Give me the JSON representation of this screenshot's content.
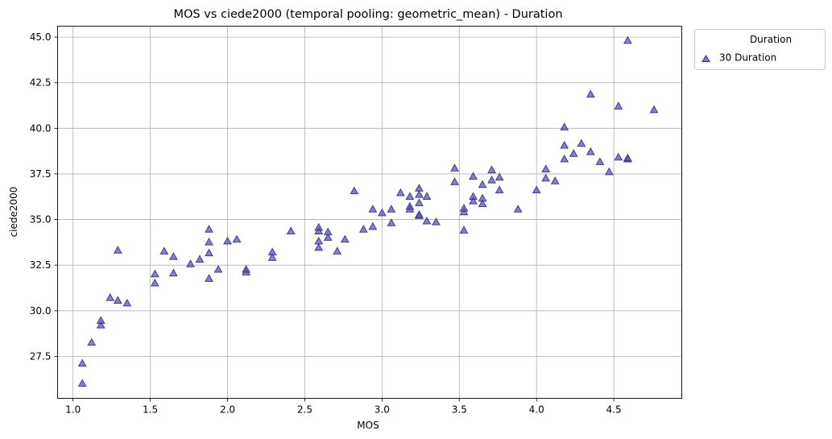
{
  "chart_data": {
    "type": "scatter",
    "title": "MOS vs ciede2000 (temporal pooling: geometric_mean) - Duration",
    "xlabel": "MOS",
    "ylabel": "ciede2000",
    "xlim": [
      0.9,
      4.94
    ],
    "ylim": [
      25.2,
      45.6
    ],
    "xticks": [
      1.0,
      1.5,
      2.0,
      2.5,
      3.0,
      3.5,
      4.0,
      4.5
    ],
    "xtick_labels": [
      "1.0",
      "1.5",
      "2.0",
      "2.5",
      "3.0",
      "3.5",
      "4.0",
      "4.5"
    ],
    "yticks": [
      27.5,
      30.0,
      32.5,
      35.0,
      37.5,
      40.0,
      42.5,
      45.0
    ],
    "ytick_labels": [
      "27.5",
      "30.0",
      "32.5",
      "35.0",
      "37.5",
      "40.0",
      "42.5",
      "45.0"
    ],
    "grid": true,
    "legend": {
      "title": "Duration",
      "placement": "outside-top-right"
    },
    "marker": "triangle",
    "colors": {
      "marker_fill": "#5552b0",
      "marker_edge": "#2b288a"
    },
    "series": [
      {
        "name": "30 Duration",
        "points": [
          [
            1.06,
            26.0
          ],
          [
            1.06,
            27.1
          ],
          [
            1.12,
            28.25
          ],
          [
            1.18,
            29.2
          ],
          [
            1.18,
            29.45
          ],
          [
            1.24,
            30.7
          ],
          [
            1.29,
            30.55
          ],
          [
            1.29,
            33.3
          ],
          [
            1.35,
            30.4
          ],
          [
            1.53,
            31.5
          ],
          [
            1.53,
            32.0
          ],
          [
            1.59,
            33.25
          ],
          [
            1.65,
            32.05
          ],
          [
            1.65,
            32.95
          ],
          [
            1.76,
            32.55
          ],
          [
            1.82,
            32.8
          ],
          [
            1.88,
            31.75
          ],
          [
            1.88,
            33.15
          ],
          [
            1.88,
            33.75
          ],
          [
            1.88,
            34.45
          ],
          [
            1.94,
            32.25
          ],
          [
            2.0,
            33.8
          ],
          [
            2.06,
            33.9
          ],
          [
            2.12,
            32.1
          ],
          [
            2.12,
            32.25
          ],
          [
            2.29,
            32.9
          ],
          [
            2.29,
            33.2
          ],
          [
            2.41,
            34.35
          ],
          [
            2.59,
            33.45
          ],
          [
            2.59,
            33.8
          ],
          [
            2.59,
            34.35
          ],
          [
            2.59,
            34.55
          ],
          [
            2.65,
            34.0
          ],
          [
            2.65,
            34.3
          ],
          [
            2.71,
            33.25
          ],
          [
            2.76,
            33.9
          ],
          [
            2.82,
            36.55
          ],
          [
            2.88,
            34.45
          ],
          [
            2.94,
            34.6
          ],
          [
            2.94,
            35.55
          ],
          [
            3.0,
            35.35
          ],
          [
            3.06,
            34.8
          ],
          [
            3.06,
            35.55
          ],
          [
            3.12,
            36.45
          ],
          [
            3.18,
            35.55
          ],
          [
            3.18,
            35.7
          ],
          [
            3.18,
            36.25
          ],
          [
            3.24,
            35.2
          ],
          [
            3.24,
            35.9
          ],
          [
            3.24,
            36.35
          ],
          [
            3.24,
            36.7
          ],
          [
            3.24,
            35.25
          ],
          [
            3.29,
            34.9
          ],
          [
            3.29,
            36.25
          ],
          [
            3.35,
            34.85
          ],
          [
            3.47,
            37.05
          ],
          [
            3.47,
            37.8
          ],
          [
            3.53,
            34.4
          ],
          [
            3.53,
            35.4
          ],
          [
            3.53,
            35.6
          ],
          [
            3.59,
            36.0
          ],
          [
            3.59,
            36.25
          ],
          [
            3.59,
            37.35
          ],
          [
            3.65,
            35.85
          ],
          [
            3.65,
            36.15
          ],
          [
            3.65,
            36.9
          ],
          [
            3.71,
            37.15
          ],
          [
            3.71,
            37.7
          ],
          [
            3.76,
            36.6
          ],
          [
            3.76,
            37.3
          ],
          [
            3.88,
            35.55
          ],
          [
            4.0,
            36.6
          ],
          [
            4.06,
            37.25
          ],
          [
            4.06,
            37.75
          ],
          [
            4.12,
            37.1
          ],
          [
            4.18,
            38.3
          ],
          [
            4.18,
            39.05
          ],
          [
            4.18,
            40.05
          ],
          [
            4.24,
            38.6
          ],
          [
            4.29,
            39.15
          ],
          [
            4.35,
            38.7
          ],
          [
            4.35,
            41.85
          ],
          [
            4.41,
            38.15
          ],
          [
            4.47,
            37.6
          ],
          [
            4.53,
            38.4
          ],
          [
            4.53,
            41.2
          ],
          [
            4.59,
            38.3
          ],
          [
            4.59,
            38.35
          ],
          [
            4.59,
            44.8
          ],
          [
            4.76,
            41.0
          ]
        ]
      }
    ]
  }
}
